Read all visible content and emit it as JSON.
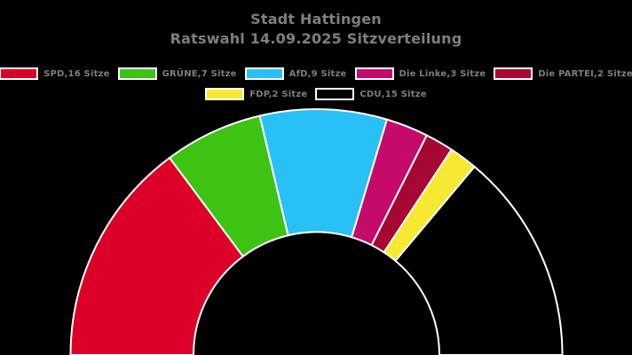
{
  "title": {
    "line1": "Stadt Hattingen",
    "line2": "Ratswahl 14.09.2025 Sitzverteilung"
  },
  "colors": {
    "background": "#000000",
    "text": "#7e7e7e",
    "wedge_outline": "#ffffff"
  },
  "chart_data": {
    "type": "pie",
    "variant": "half-donut",
    "title": "Stadt Hattingen",
    "subtitle": "Ratswahl 14.09.2025 Sitzverteilung",
    "unit": "Sitze",
    "total_seats": 54,
    "series": [
      {
        "name": "SPD",
        "seats": 16,
        "color": "#dc0028",
        "label": "SPD,16 Sitze"
      },
      {
        "name": "GRÜNE",
        "seats": 7,
        "color": "#3cc314",
        "label": "GRÜNE,7 Sitze"
      },
      {
        "name": "AfD",
        "seats": 9,
        "color": "#29c1f5",
        "label": "AfD,9 Sitze"
      },
      {
        "name": "Die Linke",
        "seats": 3,
        "color": "#c50a69",
        "label": "Die Linke,3 Sitze"
      },
      {
        "name": "Die PARTEI",
        "seats": 2,
        "color": "#a50832",
        "label": "Die PARTEI,2 Sitze"
      },
      {
        "name": "FDP",
        "seats": 2,
        "color": "#f7e832",
        "label": "FDP,2 Sitze"
      },
      {
        "name": "CDU",
        "seats": 15,
        "color": "#000000",
        "label": "CDU,15 Sitze"
      }
    ],
    "legend_rows": [
      [
        0,
        1,
        2,
        3,
        4
      ],
      [
        5,
        6
      ]
    ],
    "legend_position": "top",
    "geometry": {
      "cx": 356.5,
      "cy": 400,
      "outer_radius": 277,
      "inner_radius": 138.5,
      "start_angle_deg": 180,
      "end_angle_deg": 0,
      "stroke_width": 2
    }
  }
}
